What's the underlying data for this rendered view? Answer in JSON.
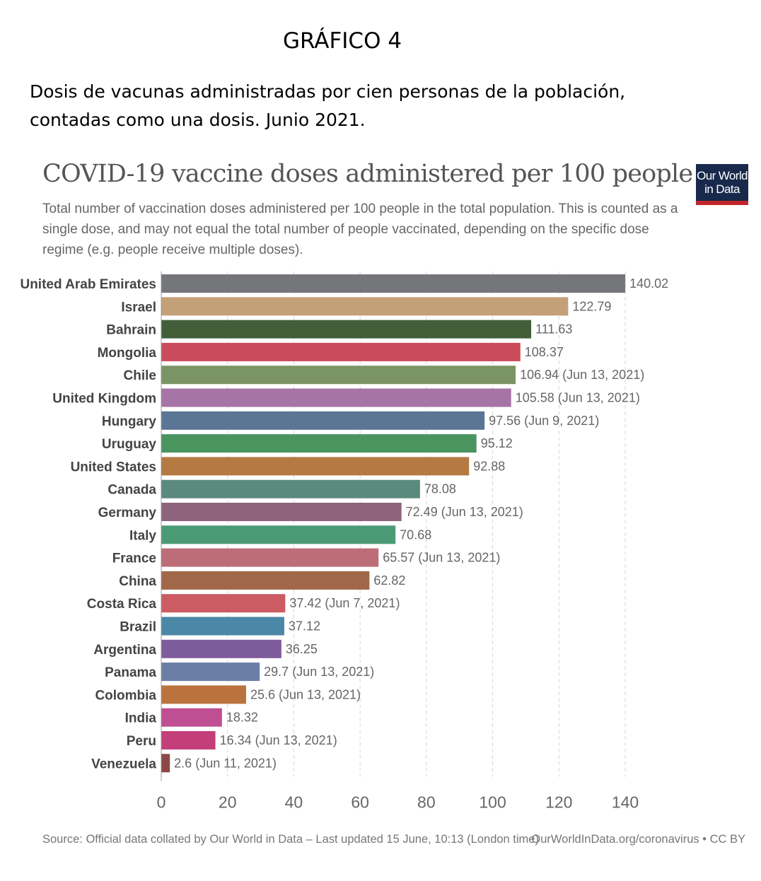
{
  "header": {
    "title": "GRÁFICO 4",
    "description_line1": "Dosis de vacunas administradas por cien personas de la población,",
    "description_line2": "contadas como una dosis. Junio 2021."
  },
  "logo": {
    "line1": "Our World",
    "line2": "in Data"
  },
  "footer": {
    "source": "Source: Official data collated by Our World in Data – Last updated 15 June, 10:13 (London time)",
    "license": "OurWorldInData.org/coronavirus • CC BY"
  },
  "chart_data": {
    "type": "bar",
    "orientation": "horizontal",
    "title": "COVID-19 vaccine doses administered per 100 people",
    "subtitle": "Total number of vaccination doses administered per 100 people in the total population. This is counted as a single dose, and may not equal the total number of people vaccinated, depending on the specific dose regime (e.g. people receive multiple doses).",
    "xlim": [
      0,
      140
    ],
    "xticks": [
      0,
      20,
      40,
      60,
      80,
      100,
      120,
      140
    ],
    "grid": "vertical dashed",
    "bars": [
      {
        "category": "United Arab Emirates",
        "value": 140.02,
        "label": "140.02",
        "color": "#75767a"
      },
      {
        "category": "Israel",
        "value": 122.79,
        "label": "122.79",
        "color": "#c4a079"
      },
      {
        "category": "Bahrain",
        "value": 111.63,
        "label": "111.63",
        "color": "#41603a"
      },
      {
        "category": "Mongolia",
        "value": 108.37,
        "label": "108.37",
        "color": "#ca4b5b"
      },
      {
        "category": "Chile",
        "value": 106.94,
        "label": "106.94 (Jun 13, 2021)",
        "color": "#7b9465"
      },
      {
        "category": "United Kingdom",
        "value": 105.58,
        "label": "105.58 (Jun 13, 2021)",
        "color": "#a674a6"
      },
      {
        "category": "Hungary",
        "value": 97.56,
        "label": "97.56 (Jun 9, 2021)",
        "color": "#5b7595"
      },
      {
        "category": "Uruguay",
        "value": 95.12,
        "label": "95.12",
        "color": "#4a9460"
      },
      {
        "category": "United States",
        "value": 92.88,
        "label": "92.88",
        "color": "#b57a42"
      },
      {
        "category": "Canada",
        "value": 78.08,
        "label": "78.08",
        "color": "#5a8a7c"
      },
      {
        "category": "Germany",
        "value": 72.49,
        "label": "72.49 (Jun 13, 2021)",
        "color": "#8e637c"
      },
      {
        "category": "Italy",
        "value": 70.68,
        "label": "70.68",
        "color": "#4b9a76"
      },
      {
        "category": "France",
        "value": 65.57,
        "label": "65.57 (Jun 13, 2021)",
        "color": "#bd6d78"
      },
      {
        "category": "China",
        "value": 62.82,
        "label": "62.82",
        "color": "#a06848"
      },
      {
        "category": "Costa Rica",
        "value": 37.42,
        "label": "37.42 (Jun 7, 2021)",
        "color": "#cc5b63"
      },
      {
        "category": "Brazil",
        "value": 37.12,
        "label": "37.12",
        "color": "#4b87a6"
      },
      {
        "category": "Argentina",
        "value": 36.25,
        "label": "36.25",
        "color": "#7e5b9a"
      },
      {
        "category": "Panama",
        "value": 29.7,
        "label": "29.7 (Jun 13, 2021)",
        "color": "#6a7ea6"
      },
      {
        "category": "Colombia",
        "value": 25.6,
        "label": "25.6 (Jun 13, 2021)",
        "color": "#bb733e"
      },
      {
        "category": "India",
        "value": 18.32,
        "label": "18.32",
        "color": "#c04e93"
      },
      {
        "category": "Peru",
        "value": 16.34,
        "label": "16.34 (Jun 13, 2021)",
        "color": "#c33f7a"
      },
      {
        "category": "Venezuela",
        "value": 2.6,
        "label": "2.6 (Jun 11, 2021)",
        "color": "#8c4848"
      }
    ]
  }
}
